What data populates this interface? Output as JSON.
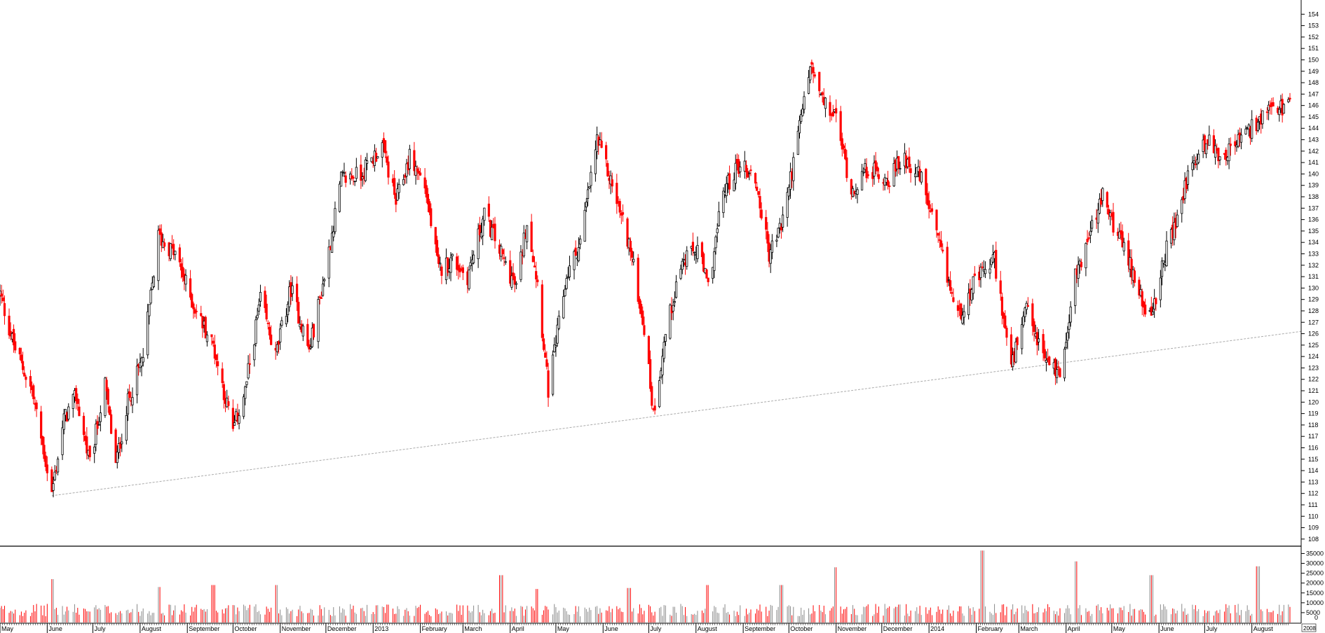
{
  "chart_data": [
    {
      "type": "candlestick",
      "title": "",
      "price_ticks": [
        108,
        109,
        110,
        111,
        112,
        113,
        114,
        115,
        116,
        117,
        118,
        119,
        120,
        121,
        122,
        123,
        124,
        125,
        126,
        127,
        128,
        129,
        130,
        131,
        132,
        133,
        134,
        135,
        136,
        137,
        138,
        139,
        140,
        141,
        142,
        143,
        144,
        145,
        146,
        147,
        148,
        149,
        150,
        151,
        152,
        153,
        154
      ],
      "ylim": [
        107.5,
        155
      ],
      "x_labels": [
        "May",
        "June",
        "July",
        "August",
        "September",
        "October",
        "November",
        "December",
        "2013",
        "February",
        "March",
        "April",
        "May",
        "June",
        "July",
        "August",
        "September",
        "October",
        "November",
        "December",
        "2014",
        "February",
        "March",
        "April",
        "May",
        "June",
        "July",
        "August"
      ],
      "x_range": [
        "2012-05-01",
        "2014-08-26"
      ],
      "close_series": [
        {
          "date": "2012-05-01",
          "close": 129.5
        },
        {
          "date": "2012-05-10",
          "close": 125.0
        },
        {
          "date": "2012-05-22",
          "close": 121.0
        },
        {
          "date": "2012-06-04",
          "close": 112.0
        },
        {
          "date": "2012-06-12",
          "close": 118.5
        },
        {
          "date": "2012-06-20",
          "close": 120.5
        },
        {
          "date": "2012-06-29",
          "close": 114.5
        },
        {
          "date": "2012-07-09",
          "close": 121.5
        },
        {
          "date": "2012-07-16",
          "close": 114.5
        },
        {
          "date": "2012-07-24",
          "close": 120.0
        },
        {
          "date": "2012-08-03",
          "close": 124.0
        },
        {
          "date": "2012-08-13",
          "close": 134.5
        },
        {
          "date": "2012-08-24",
          "close": 133.0
        },
        {
          "date": "2012-09-05",
          "close": 128.5
        },
        {
          "date": "2012-09-18",
          "close": 125.0
        },
        {
          "date": "2012-10-01",
          "close": 117.5
        },
        {
          "date": "2012-10-09",
          "close": 121.0
        },
        {
          "date": "2012-10-19",
          "close": 129.0
        },
        {
          "date": "2012-10-29",
          "close": 124.0
        },
        {
          "date": "2012-11-08",
          "close": 130.0
        },
        {
          "date": "2012-11-20",
          "close": 124.5
        },
        {
          "date": "2012-11-30",
          "close": 131.0
        },
        {
          "date": "2012-12-11",
          "close": 139.5
        },
        {
          "date": "2012-12-24",
          "close": 140.0
        },
        {
          "date": "2013-01-07",
          "close": 142.5
        },
        {
          "date": "2013-01-16",
          "close": 137.5
        },
        {
          "date": "2013-01-25",
          "close": 141.5
        },
        {
          "date": "2013-02-04",
          "close": 139.0
        },
        {
          "date": "2013-02-13",
          "close": 131.5
        },
        {
          "date": "2013-02-22",
          "close": 132.5
        },
        {
          "date": "2013-03-04",
          "close": 131.0
        },
        {
          "date": "2013-03-15",
          "close": 136.5
        },
        {
          "date": "2013-03-26",
          "close": 133.0
        },
        {
          "date": "2013-04-05",
          "close": 130.0
        },
        {
          "date": "2013-04-12",
          "close": 136.0
        },
        {
          "date": "2013-04-19",
          "close": 130.5
        },
        {
          "date": "2013-04-26",
          "close": 121.0
        },
        {
          "date": "2013-05-08",
          "close": 131.0
        },
        {
          "date": "2013-05-17",
          "close": 134.0
        },
        {
          "date": "2013-05-28",
          "close": 143.0
        },
        {
          "date": "2013-06-07",
          "close": 139.0
        },
        {
          "date": "2013-06-18",
          "close": 134.0
        },
        {
          "date": "2013-06-28",
          "close": 126.5
        },
        {
          "date": "2013-07-04",
          "close": 119.0
        },
        {
          "date": "2013-07-12",
          "close": 126.0
        },
        {
          "date": "2013-07-22",
          "close": 132.0
        },
        {
          "date": "2013-08-02",
          "close": 133.5
        },
        {
          "date": "2013-08-09",
          "close": 130.0
        },
        {
          "date": "2013-08-19",
          "close": 138.5
        },
        {
          "date": "2013-08-30",
          "close": 141.0
        },
        {
          "date": "2013-09-09",
          "close": 139.5
        },
        {
          "date": "2013-09-18",
          "close": 133.0
        },
        {
          "date": "2013-09-26",
          "close": 135.5
        },
        {
          "date": "2013-10-04",
          "close": 141.0
        },
        {
          "date": "2013-10-15",
          "close": 149.5
        },
        {
          "date": "2013-10-24",
          "close": 146.0
        },
        {
          "date": "2013-11-01",
          "close": 145.0
        },
        {
          "date": "2013-11-11",
          "close": 138.5
        },
        {
          "date": "2013-11-22",
          "close": 140.5
        },
        {
          "date": "2013-12-05",
          "close": 139.5
        },
        {
          "date": "2013-12-16",
          "close": 141.5
        },
        {
          "date": "2013-12-27",
          "close": 139.5
        },
        {
          "date": "2014-01-09",
          "close": 133.0
        },
        {
          "date": "2014-01-20",
          "close": 127.5
        },
        {
          "date": "2014-01-31",
          "close": 130.5
        },
        {
          "date": "2014-02-13",
          "close": 132.5
        },
        {
          "date": "2014-02-24",
          "close": 123.0
        },
        {
          "date": "2014-03-06",
          "close": 128.0
        },
        {
          "date": "2014-03-17",
          "close": 124.0
        },
        {
          "date": "2014-03-28",
          "close": 122.5
        },
        {
          "date": "2014-04-07",
          "close": 131.0
        },
        {
          "date": "2014-04-16",
          "close": 134.5
        },
        {
          "date": "2014-04-25",
          "close": 138.0
        },
        {
          "date": "2014-05-07",
          "close": 134.0
        },
        {
          "date": "2014-05-16",
          "close": 131.0
        },
        {
          "date": "2014-05-27",
          "close": 127.0
        },
        {
          "date": "2014-06-05",
          "close": 133.0
        },
        {
          "date": "2014-06-13",
          "close": 136.0
        },
        {
          "date": "2014-06-20",
          "close": 140.0
        },
        {
          "date": "2014-07-02",
          "close": 143.0
        },
        {
          "date": "2014-07-12",
          "close": 141.5
        },
        {
          "date": "2014-07-24",
          "close": 143.0
        },
        {
          "date": "2014-08-05",
          "close": 144.5
        },
        {
          "date": "2014-08-14",
          "close": 145.5
        },
        {
          "date": "2014-08-26",
          "close": 146.0
        }
      ],
      "trendline": {
        "start": {
          "date": "2012-06-04",
          "value": 111.8
        },
        "end": {
          "date": "2014-08-26",
          "value": 126.2
        }
      },
      "colors": {
        "down": "#ff0000",
        "up": "#000000",
        "trendline": "#aaaaaa",
        "axis": "#000000"
      }
    },
    {
      "type": "bar",
      "title": "",
      "volume_ticks": [
        0,
        5000,
        10000,
        15000,
        20000,
        25000,
        30000,
        35000
      ],
      "ylim": [
        0,
        38000
      ],
      "volume_peaks": [
        {
          "date": "2012-06-04",
          "value": 22000
        },
        {
          "date": "2012-08-13",
          "value": 18000
        },
        {
          "date": "2012-09-18",
          "value": 19000
        },
        {
          "date": "2012-10-29",
          "value": 19000
        },
        {
          "date": "2013-03-26",
          "value": 24000
        },
        {
          "date": "2013-04-19",
          "value": 17000
        },
        {
          "date": "2013-06-18",
          "value": 17500
        },
        {
          "date": "2013-08-09",
          "value": 19000
        },
        {
          "date": "2013-09-26",
          "value": 19000
        },
        {
          "date": "2013-11-01",
          "value": 28000
        },
        {
          "date": "2014-02-05",
          "value": 36500
        },
        {
          "date": "2014-04-07",
          "value": 31000
        },
        {
          "date": "2014-05-27",
          "value": 24000
        },
        {
          "date": "2014-08-05",
          "value": 28500
        }
      ],
      "baseline_volume": 7000,
      "axis_footer_label": "0",
      "corner_label": "2008",
      "colors": {
        "up": "#8a8a8a",
        "down": "#ff0000"
      }
    }
  ]
}
